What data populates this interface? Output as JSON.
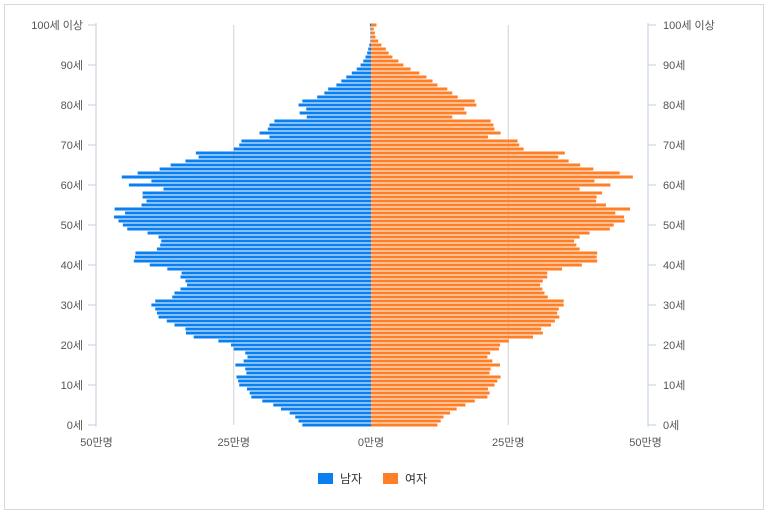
{
  "chart_data": {
    "type": "bar",
    "orientation": "horizontal-pyramid",
    "unit": "만명",
    "xlim": [
      -50,
      50
    ],
    "x_ticks": [
      -50,
      -25,
      0,
      25,
      50
    ],
    "x_tick_labels": [
      "50만명",
      "25만명",
      "0만명",
      "25만명",
      "50만명"
    ],
    "y_ticks": [
      0,
      10,
      20,
      30,
      40,
      50,
      60,
      70,
      80,
      90,
      100
    ],
    "y_tick_labels": [
      "0세",
      "10세",
      "20세",
      "30세",
      "40세",
      "50세",
      "60세",
      "70세",
      "80세",
      "90세",
      "100세 이상"
    ],
    "grid": true,
    "legend_position": "bottom",
    "ages": "0-100",
    "series": [
      {
        "name": "남자",
        "color": "#0a7ff0",
        "values": [
          12.5,
          13.2,
          13.8,
          14.8,
          16.4,
          17.8,
          19.8,
          21.8,
          22.1,
          22.6,
          24.0,
          24.2,
          24.5,
          22.7,
          22.9,
          24.7,
          23.2,
          22.5,
          22.9,
          25.0,
          25.5,
          27.8,
          32.3,
          33.7,
          33.8,
          35.8,
          37.2,
          38.7,
          39.0,
          39.3,
          40.0,
          39.3,
          36.2,
          35.8,
          34.7,
          33.5,
          33.8,
          34.7,
          34.5,
          37.1,
          40.3,
          43.2,
          43.0,
          42.9,
          39.0,
          38.4,
          38.2,
          38.7,
          40.7,
          44.4,
          45.2,
          46.0,
          46.8,
          44.8,
          46.7,
          41.8,
          40.9,
          41.6,
          41.6,
          37.8,
          44.1,
          40.0,
          45.4,
          42.5,
          38.5,
          36.5,
          33.8,
          31.4,
          31.9,
          25.0,
          24.0,
          23.6,
          18.5,
          20.3,
          18.8,
          18.5,
          17.6,
          11.7,
          13.0,
          11.8,
          13.2,
          12.5,
          9.8,
          8.5,
          7.8,
          6.3,
          5.4,
          4.5,
          3.5,
          2.6,
          1.9,
          1.4,
          1.0,
          0.7,
          0.5,
          0.3,
          0.1,
          0.1,
          0.1,
          0.1,
          0.2
        ]
      },
      {
        "name": "여자",
        "color": "#ff7f27",
        "values": [
          12.1,
          12.7,
          13.2,
          14.4,
          15.6,
          17.2,
          18.9,
          21.2,
          21.6,
          21.3,
          22.5,
          23.0,
          23.6,
          21.6,
          21.8,
          23.5,
          22.1,
          21.2,
          21.7,
          23.3,
          23.5,
          25.1,
          29.5,
          31.3,
          31.0,
          32.8,
          33.5,
          34.3,
          33.9,
          34.2,
          35.1,
          35.1,
          32.2,
          31.6,
          31.2,
          30.8,
          31.3,
          32.1,
          32.1,
          34.8,
          38.4,
          41.2,
          41.1,
          41.2,
          38.0,
          37.4,
          37.0,
          38.0,
          39.8,
          43.5,
          44.2,
          46.2,
          46.1,
          44.5,
          47.2,
          42.8,
          41.0,
          41.1,
          42.1,
          38.0,
          43.6,
          40.7,
          47.7,
          45.3,
          40.5,
          38.1,
          36.0,
          34.1,
          35.3,
          27.8,
          27.0,
          26.7,
          21.3,
          23.6,
          22.5,
          22.3,
          21.8,
          14.8,
          17.4,
          17.0,
          19.2,
          18.9,
          15.8,
          14.8,
          13.9,
          12.1,
          11.2,
          10.1,
          8.8,
          7.2,
          5.9,
          5.0,
          3.9,
          3.2,
          2.7,
          1.9,
          1.3,
          0.8,
          0.7,
          0.5,
          1.0
        ]
      }
    ]
  },
  "legend": {
    "male": "남자",
    "female": "여자"
  }
}
